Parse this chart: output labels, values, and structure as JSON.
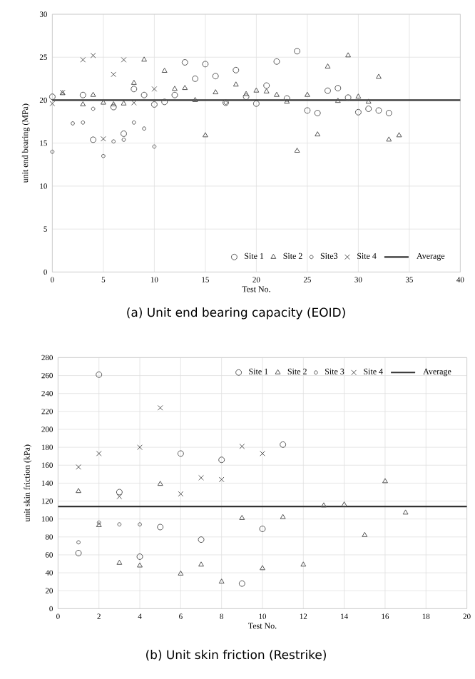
{
  "chart_data": [
    {
      "type": "scatter",
      "title": "(a) Unit end bearing capacity (EOID)",
      "xlabel": "Test No.",
      "ylabel": "unit end bearing (MPa)",
      "xlim": [
        0,
        40
      ],
      "ylim": [
        0,
        30
      ],
      "xticks": [
        0,
        5,
        10,
        15,
        20,
        25,
        30,
        35,
        40
      ],
      "yticks": [
        0,
        5,
        10,
        15,
        20,
        25,
        30
      ],
      "grid": true,
      "legend": "bottom right",
      "series": [
        {
          "name": "Site 1",
          "color": "#555555",
          "marker": "circle",
          "x": [
            0,
            3,
            4,
            6,
            7,
            8,
            9,
            10,
            11,
            12,
            13,
            14,
            15,
            16,
            17,
            18,
            19,
            20,
            21,
            22,
            23,
            24,
            25,
            26,
            27,
            28,
            29,
            30,
            31,
            32,
            33
          ],
          "values": [
            20.4,
            20.6,
            15.4,
            19.2,
            16.1,
            21.3,
            20.6,
            19.5,
            19.8,
            20.6,
            24.4,
            22.5,
            24.2,
            22.8,
            19.7,
            23.5,
            20.4,
            19.6,
            21.7,
            24.5,
            20.2,
            25.7,
            18.8,
            18.5,
            21.1,
            21.4,
            20.3,
            18.6,
            19.0,
            18.8,
            18.5
          ]
        },
        {
          "name": "Site 2",
          "color": "#555555",
          "marker": "triangle",
          "x": [
            1,
            3,
            4,
            5,
            6,
            7,
            8,
            9,
            11,
            12,
            13,
            14,
            15,
            16,
            18,
            19,
            20,
            21,
            22,
            23,
            24,
            25,
            26,
            27,
            28,
            29,
            30,
            31,
            32,
            33,
            34
          ],
          "values": [
            20.8,
            19.5,
            20.6,
            19.7,
            19.5,
            19.6,
            22.0,
            24.7,
            23.4,
            21.3,
            21.4,
            20.0,
            15.9,
            20.9,
            21.8,
            20.7,
            21.1,
            21.0,
            20.6,
            19.8,
            14.1,
            20.6,
            16.0,
            23.9,
            19.9,
            25.2,
            20.4,
            19.8,
            22.7,
            15.4,
            15.9
          ]
        },
        {
          "name": "Site3",
          "color": "#555555",
          "marker": "diamond",
          "x": [
            0,
            2,
            3,
            4,
            5,
            6,
            7,
            8,
            9,
            10,
            17
          ],
          "values": [
            14.0,
            17.3,
            17.4,
            19.0,
            13.5,
            15.2,
            15.4,
            17.4,
            16.7,
            14.6,
            19.7
          ]
        },
        {
          "name": "Site 4",
          "color": "#555555",
          "marker": "cross",
          "x": [
            0,
            1,
            3,
            4,
            5,
            6,
            7,
            8,
            9,
            10
          ],
          "values": [
            19.6,
            20.9,
            24.7,
            25.2,
            15.5,
            23.0,
            24.7,
            19.7,
            null,
            21.3
          ]
        },
        {
          "name": "Average",
          "type": "line",
          "color": "#333333",
          "marker": "none",
          "x": [
            0,
            40
          ],
          "values": [
            20.0,
            20.0
          ]
        }
      ]
    },
    {
      "type": "scatter",
      "title": "(b) Unit skin friction (Restrike)",
      "xlabel": "Test No.",
      "ylabel": "unit skin friction (kPa)",
      "xlim": [
        0,
        20
      ],
      "ylim": [
        0,
        280
      ],
      "xticks": [
        0,
        2,
        4,
        6,
        8,
        10,
        12,
        14,
        16,
        18,
        20
      ],
      "yticks": [
        0,
        20,
        40,
        60,
        80,
        100,
        120,
        140,
        160,
        180,
        200,
        220,
        240,
        260,
        280
      ],
      "grid": true,
      "legend": "top right",
      "series": [
        {
          "name": "Site 1",
          "color": "#555555",
          "marker": "circle",
          "x": [
            1,
            2,
            3,
            4,
            5,
            6,
            7,
            8,
            9,
            10,
            11
          ],
          "values": [
            62,
            261,
            130,
            58,
            91,
            173,
            77,
            166,
            28,
            89,
            183
          ]
        },
        {
          "name": "Site 2",
          "color": "#555555",
          "marker": "triangle",
          "x": [
            1,
            2,
            3,
            4,
            5,
            6,
            7,
            8,
            9,
            10,
            11,
            12,
            13,
            14,
            15,
            16,
            17
          ],
          "values": [
            131,
            93,
            51,
            48,
            139,
            39,
            49,
            30,
            101,
            45,
            102,
            49,
            115,
            116,
            82,
            142,
            107
          ]
        },
        {
          "name": "Site 3",
          "color": "#555555",
          "marker": "diamond",
          "x": [
            1,
            2,
            3,
            4
          ],
          "values": [
            74,
            96,
            94,
            94
          ]
        },
        {
          "name": "Site 4",
          "color": "#555555",
          "marker": "cross",
          "x": [
            1,
            2,
            3,
            4,
            5,
            6,
            7,
            8,
            9,
            10
          ],
          "values": [
            158,
            173,
            125,
            180,
            224,
            128,
            146,
            144,
            181,
            173
          ]
        },
        {
          "name": "Average",
          "type": "line",
          "color": "#333333",
          "marker": "none",
          "x": [
            0,
            20
          ],
          "values": [
            114,
            114
          ]
        }
      ]
    }
  ]
}
